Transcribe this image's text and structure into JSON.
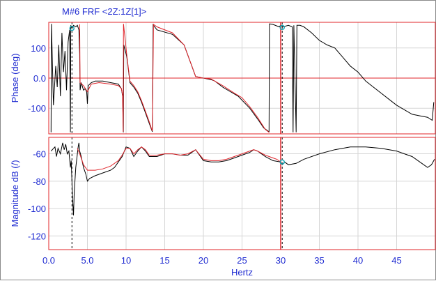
{
  "chart_data": {
    "title": "M#6 FRF  <2Z:1Z[1]>",
    "xlabel": "Hertz",
    "x_range": [
      0,
      50
    ],
    "x_ticks": [
      "0.0",
      "5.0",
      "10",
      "15",
      "20",
      "25",
      "30",
      "35",
      "40",
      "45"
    ],
    "x_tick_values": [
      0,
      5,
      10,
      15,
      20,
      25,
      30,
      35,
      40,
      45
    ],
    "grid": true,
    "colors": {
      "axis_text": "#1f2bd1",
      "measured": "#000000",
      "fit": "#e0242a",
      "cursor": "#000000",
      "marker": "#18a8b8",
      "grid": "#d6d6d6",
      "frame": "#e0242a"
    },
    "cursors": {
      "solid_hz": 30.0,
      "dashed_hz": 3.0,
      "dashed2_hz": 30.2
    },
    "panels": [
      {
        "type": "line",
        "ylabel": "Phase (deg)",
        "ylim": [
          -185,
          185
        ],
        "y_ticks": [
          "100",
          "0.0",
          "-100"
        ],
        "y_tick_values": [
          100,
          0,
          -100
        ],
        "series": [
          {
            "role": "measured",
            "points": [
              [
                0.3,
                -180
              ],
              [
                0.35,
                180
              ],
              [
                0.6,
                -90
              ],
              [
                0.9,
                40
              ],
              [
                1.1,
                -30
              ],
              [
                1.3,
                110
              ],
              [
                1.5,
                -60
              ],
              [
                1.7,
                150
              ],
              [
                1.9,
                20
              ],
              [
                2.1,
                90
              ],
              [
                2.3,
                -40
              ],
              [
                2.5,
                120
              ],
              [
                2.7,
                160
              ],
              [
                2.8,
                -180
              ],
              [
                2.85,
                175
              ],
              [
                3.0,
                165
              ],
              [
                3.2,
                175
              ],
              [
                3.5,
                170
              ],
              [
                3.7,
                175
              ],
              [
                3.9,
                160
              ],
              [
                4.0,
                80
              ],
              [
                4.05,
                -40
              ],
              [
                4.2,
                -15
              ],
              [
                4.5,
                -40
              ],
              [
                4.7,
                -35
              ],
              [
                4.9,
                -45
              ],
              [
                5.0,
                -85
              ],
              [
                5.1,
                -25
              ],
              [
                5.5,
                -15
              ],
              [
                6.0,
                -10
              ],
              [
                7.0,
                -10
              ],
              [
                8.0,
                -15
              ],
              [
                9.0,
                -20
              ],
              [
                9.4,
                -35
              ],
              [
                9.55,
                -60
              ],
              [
                9.65,
                -180
              ],
              [
                9.7,
                110
              ],
              [
                10.1,
                70
              ],
              [
                10.5,
                -15
              ],
              [
                11.0,
                -30
              ],
              [
                11.5,
                -50
              ],
              [
                12.0,
                -80
              ],
              [
                12.5,
                -115
              ],
              [
                13.0,
                -150
              ],
              [
                13.4,
                -178
              ],
              [
                13.5,
                180
              ],
              [
                13.55,
                175
              ],
              [
                14.0,
                160
              ],
              [
                16.0,
                145
              ],
              [
                17.5,
                110
              ],
              [
                18.5,
                40
              ],
              [
                19.0,
                5
              ],
              [
                20.0,
                0
              ],
              [
                21.0,
                -5
              ],
              [
                21.5,
                -10
              ],
              [
                22.5,
                -30
              ],
              [
                23.5,
                -45
              ],
              [
                24.5,
                -60
              ],
              [
                26.0,
                -100
              ],
              [
                27.0,
                -135
              ],
              [
                27.8,
                -165
              ],
              [
                28.5,
                -178
              ],
              [
                28.55,
                180
              ],
              [
                29.0,
                178
              ],
              [
                29.8,
                170
              ],
              [
                30.0,
                175
              ],
              [
                30.3,
                170
              ],
              [
                31.0,
                175
              ],
              [
                31.5,
                170
              ],
              [
                31.6,
                -180
              ],
              [
                31.7,
                175
              ],
              [
                32.0,
                -180
              ],
              [
                32.1,
                175
              ],
              [
                32.5,
                175
              ],
              [
                33.0,
                170
              ],
              [
                34.0,
                150
              ],
              [
                35.0,
                125
              ],
              [
                36.0,
                110
              ],
              [
                37.0,
                100
              ],
              [
                38.0,
                70
              ],
              [
                39.0,
                40
              ],
              [
                40.0,
                20
              ],
              [
                41.0,
                -10
              ],
              [
                42.0,
                -30
              ],
              [
                43.0,
                -50
              ],
              [
                44.0,
                -70
              ],
              [
                45.0,
                -90
              ],
              [
                46.0,
                -105
              ],
              [
                47.0,
                -120
              ],
              [
                48.0,
                -125
              ],
              [
                49.0,
                -130
              ],
              [
                49.6,
                -140
              ],
              [
                49.8,
                -80
              ]
            ]
          },
          {
            "role": "fit",
            "points": [
              [
                4.0,
                178
              ],
              [
                4.05,
                -15
              ],
              [
                4.5,
                -25
              ],
              [
                5.0,
                -45
              ],
              [
                5.5,
                -20
              ],
              [
                6.5,
                -15
              ],
              [
                8.0,
                -20
              ],
              [
                9.0,
                -25
              ],
              [
                9.4,
                -35
              ],
              [
                9.55,
                -55
              ],
              [
                9.62,
                -178
              ],
              [
                9.67,
                180
              ],
              [
                10.1,
                75
              ],
              [
                10.5,
                -10
              ],
              [
                11.0,
                -25
              ],
              [
                11.5,
                -45
              ],
              [
                12.0,
                -75
              ],
              [
                12.5,
                -110
              ],
              [
                13.0,
                -145
              ],
              [
                13.4,
                -176
              ],
              [
                13.55,
                178
              ],
              [
                14.0,
                170
              ],
              [
                16.0,
                150
              ],
              [
                17.5,
                110
              ],
              [
                18.5,
                40
              ],
              [
                19.0,
                5
              ],
              [
                20.0,
                0
              ],
              [
                21.0,
                -3
              ],
              [
                22.5,
                -25
              ],
              [
                24.0,
                -50
              ],
              [
                25.0,
                -65
              ],
              [
                26.0,
                -95
              ],
              [
                27.0,
                -130
              ],
              [
                28.0,
                -170
              ],
              [
                28.5,
                -180
              ]
            ]
          }
        ]
      },
      {
        "type": "line",
        "ylabel": "Magnitude dB  (/)",
        "ylim": [
          -130,
          -48
        ],
        "y_ticks": [
          "-60",
          "-80",
          "-100",
          "-120"
        ],
        "y_tick_values": [
          -60,
          -80,
          -100,
          -120
        ],
        "series": [
          {
            "role": "measured",
            "points": [
              [
                0.3,
                -58
              ],
              [
                0.8,
                -55
              ],
              [
                1.0,
                -62
              ],
              [
                1.2,
                -56
              ],
              [
                1.5,
                -60
              ],
              [
                1.8,
                -52
              ],
              [
                2.0,
                -57
              ],
              [
                2.2,
                -53
              ],
              [
                2.4,
                -60
              ],
              [
                2.6,
                -58
              ],
              [
                2.8,
                -70
              ],
              [
                2.9,
                -65
              ],
              [
                3.0,
                -80
              ],
              [
                3.1,
                -95
              ],
              [
                3.2,
                -105
              ],
              [
                3.3,
                -88
              ],
              [
                3.5,
                -70
              ],
              [
                3.7,
                -60
              ],
              [
                3.8,
                -55
              ],
              [
                3.9,
                -52
              ],
              [
                4.0,
                -58
              ],
              [
                4.2,
                -62
              ],
              [
                4.5,
                -70
              ],
              [
                4.8,
                -75
              ],
              [
                5.0,
                -80
              ],
              [
                5.3,
                -78
              ],
              [
                6.0,
                -76
              ],
              [
                7.0,
                -74
              ],
              [
                8.0,
                -72
              ],
              [
                8.5,
                -70
              ],
              [
                9.0,
                -66
              ],
              [
                9.5,
                -62
              ],
              [
                10.0,
                -55
              ],
              [
                10.5,
                -56
              ],
              [
                11.0,
                -62
              ],
              [
                11.5,
                -58
              ],
              [
                12.0,
                -55
              ],
              [
                12.5,
                -58
              ],
              [
                13.0,
                -62
              ],
              [
                14.0,
                -62
              ],
              [
                15.0,
                -60
              ],
              [
                16.0,
                -60
              ],
              [
                17.0,
                -61
              ],
              [
                18.0,
                -61
              ],
              [
                19.0,
                -57
              ],
              [
                20.0,
                -65
              ],
              [
                21.0,
                -66
              ],
              [
                22.0,
                -66
              ],
              [
                23.0,
                -65
              ],
              [
                24.0,
                -63
              ],
              [
                25.0,
                -61
              ],
              [
                26.0,
                -59
              ],
              [
                26.5,
                -57
              ],
              [
                27.0,
                -58
              ],
              [
                28.0,
                -62
              ],
              [
                29.0,
                -65
              ],
              [
                30.0,
                -66
              ],
              [
                30.2,
                -68
              ],
              [
                30.5,
                -66
              ],
              [
                31.0,
                -68
              ],
              [
                32.0,
                -67
              ],
              [
                33.0,
                -64
              ],
              [
                35.0,
                -60
              ],
              [
                37.0,
                -57
              ],
              [
                39.0,
                -55
              ],
              [
                41.0,
                -55
              ],
              [
                43.0,
                -56
              ],
              [
                45.0,
                -58
              ],
              [
                46.0,
                -60
              ],
              [
                47.0,
                -62
              ],
              [
                48.0,
                -66
              ],
              [
                49.0,
                -70
              ],
              [
                49.5,
                -68
              ],
              [
                49.9,
                -64
              ]
            ]
          },
          {
            "role": "fit",
            "points": [
              [
                3.7,
                -56
              ],
              [
                4.0,
                -60
              ],
              [
                4.5,
                -68
              ],
              [
                5.0,
                -72
              ],
              [
                6.0,
                -72
              ],
              [
                7.0,
                -71
              ],
              [
                8.0,
                -69
              ],
              [
                9.0,
                -65
              ],
              [
                9.5,
                -61
              ],
              [
                10.0,
                -56
              ],
              [
                10.5,
                -56
              ],
              [
                11.0,
                -60
              ],
              [
                11.5,
                -57
              ],
              [
                12.0,
                -55
              ],
              [
                12.5,
                -57
              ],
              [
                13.0,
                -61
              ],
              [
                14.0,
                -61
              ],
              [
                15.0,
                -60
              ],
              [
                16.0,
                -60
              ],
              [
                17.0,
                -61
              ],
              [
                18.0,
                -60
              ],
              [
                19.0,
                -57
              ],
              [
                20.0,
                -64
              ],
              [
                21.0,
                -65
              ],
              [
                22.0,
                -65
              ],
              [
                23.0,
                -64
              ],
              [
                24.0,
                -62
              ],
              [
                25.0,
                -60
              ],
              [
                26.0,
                -58
              ],
              [
                26.5,
                -57
              ],
              [
                27.0,
                -58
              ],
              [
                28.0,
                -61
              ],
              [
                29.0,
                -63
              ],
              [
                29.5,
                -64
              ],
              [
                30.0,
                -66
              ]
            ]
          }
        ]
      }
    ]
  }
}
